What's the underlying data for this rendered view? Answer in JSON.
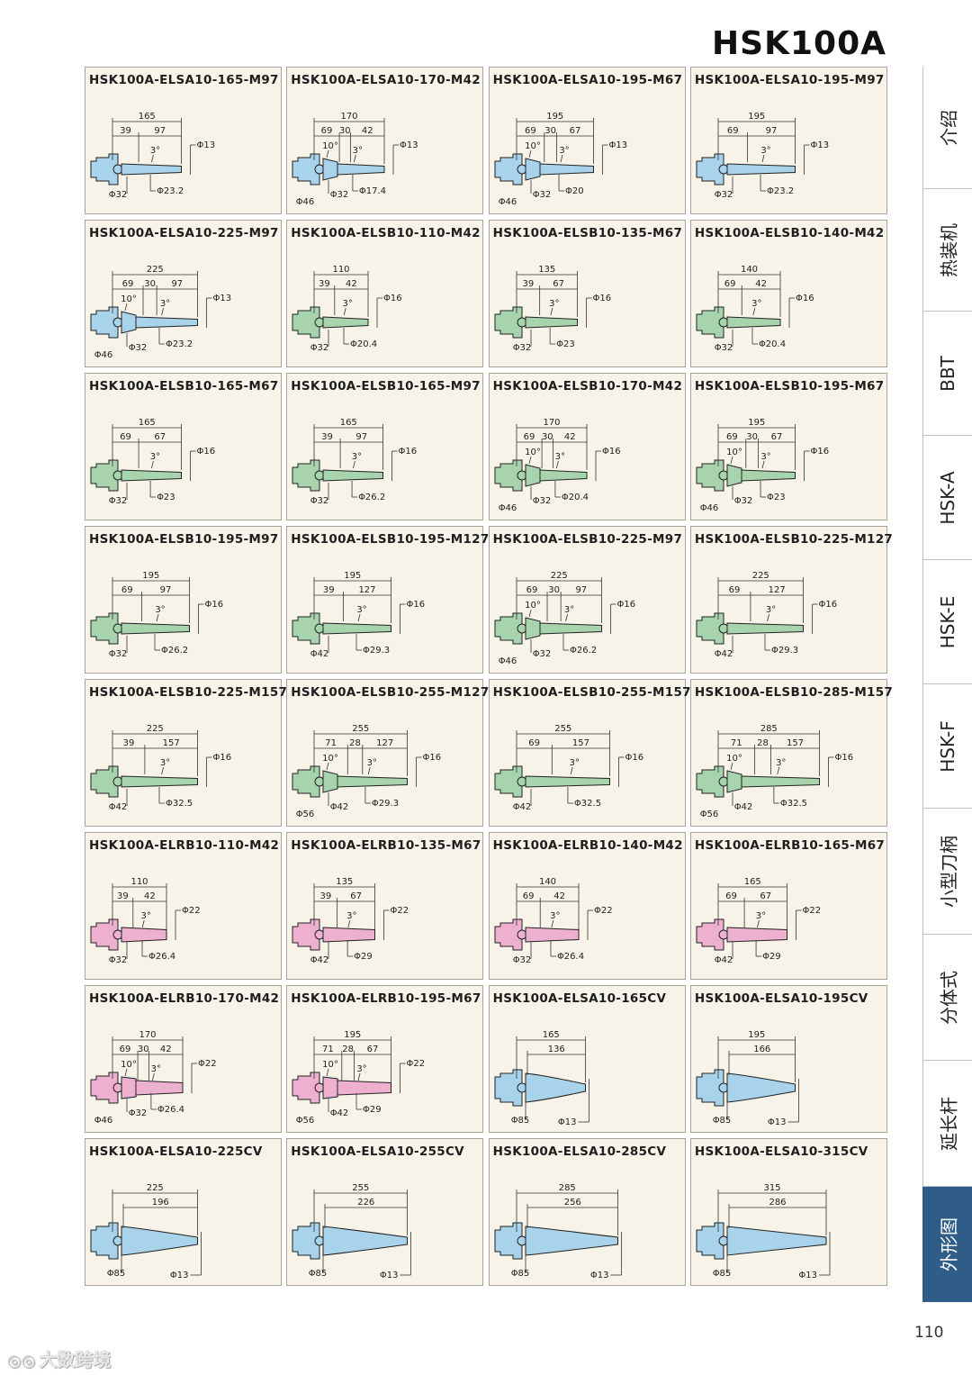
{
  "header": {
    "title": "HSK100A"
  },
  "page_number": "110",
  "watermark": {
    "icon": "camera-logo-icon",
    "text": "大数跨境"
  },
  "sidebar": {
    "items": [
      {
        "label": "介绍",
        "active": false
      },
      {
        "label": "热装机",
        "active": false
      },
      {
        "label": "BBT",
        "active": false
      },
      {
        "label": "HSK-A",
        "active": false
      },
      {
        "label": "HSK-E",
        "active": false
      },
      {
        "label": "HSK-F",
        "active": false
      },
      {
        "label": "小型刀柄",
        "active": false
      },
      {
        "label": "分体式",
        "active": false
      },
      {
        "label": "延长杆",
        "active": false
      },
      {
        "label": "外形图",
        "active": true
      }
    ]
  },
  "colors": {
    "ELSA": "#a9d3ea",
    "ELSB": "#a7d4ac",
    "ELRB": "#eeb0cf",
    "card_bg": "#f7f3e8",
    "sidebar_active": "#2f5d88"
  },
  "cards": [
    {
      "title": "HSK100A-ELSA10-165-M97",
      "kind": "ELSA",
      "total": "165",
      "dims": [
        "39",
        "97"
      ],
      "angles": [
        "3°"
      ],
      "d_tip": "Φ13",
      "d_body": "Φ23.2",
      "d_shank": [
        "Φ32"
      ]
    },
    {
      "title": "HSK100A-ELSA10-170-M42",
      "kind": "ELSA",
      "total": "170",
      "dims": [
        "69",
        "30",
        "42"
      ],
      "angles": [
        "10°",
        "3°"
      ],
      "d_tip": "Φ13",
      "d_body": "Φ17.4",
      "d_shank": [
        "Φ46",
        "Φ32"
      ]
    },
    {
      "title": "HSK100A-ELSA10-195-M67",
      "kind": "ELSA",
      "total": "195",
      "dims": [
        "69",
        "30",
        "67"
      ],
      "angles": [
        "10°",
        "3°"
      ],
      "d_tip": "Φ13",
      "d_body": "Φ20",
      "d_shank": [
        "Φ46",
        "Φ32"
      ]
    },
    {
      "title": "HSK100A-ELSA10-195-M97",
      "kind": "ELSA",
      "total": "195",
      "dims": [
        "69",
        "97"
      ],
      "angles": [
        "3°"
      ],
      "d_tip": "Φ13",
      "d_body": "Φ23.2",
      "d_shank": [
        "Φ32"
      ]
    },
    {
      "title": "HSK100A-ELSA10-225-M97",
      "kind": "ELSA",
      "total": "225",
      "dims": [
        "69",
        "30",
        "97"
      ],
      "angles": [
        "10°",
        "3°"
      ],
      "d_tip": "Φ13",
      "d_body": "Φ23.2",
      "d_shank": [
        "Φ46",
        "Φ32"
      ]
    },
    {
      "title": "HSK100A-ELSB10-110-M42",
      "kind": "ELSB",
      "total": "110",
      "dims": [
        "39",
        "42"
      ],
      "angles": [
        "3°"
      ],
      "d_tip": "Φ16",
      "d_body": "Φ20.4",
      "d_shank": [
        "Φ32"
      ]
    },
    {
      "title": "HSK100A-ELSB10-135-M67",
      "kind": "ELSB",
      "total": "135",
      "dims": [
        "39",
        "67"
      ],
      "angles": [
        "3°"
      ],
      "d_tip": "Φ16",
      "d_body": "Φ23",
      "d_shank": [
        "Φ32"
      ]
    },
    {
      "title": "HSK100A-ELSB10-140-M42",
      "kind": "ELSB",
      "total": "140",
      "dims": [
        "69",
        "42"
      ],
      "angles": [
        "3°"
      ],
      "d_tip": "Φ16",
      "d_body": "Φ20.4",
      "d_shank": [
        "Φ32"
      ]
    },
    {
      "title": "HSK100A-ELSB10-165-M67",
      "kind": "ELSB",
      "total": "165",
      "dims": [
        "69",
        "67"
      ],
      "angles": [
        "3°"
      ],
      "d_tip": "Φ16",
      "d_body": "Φ23",
      "d_shank": [
        "Φ32"
      ]
    },
    {
      "title": "HSK100A-ELSB10-165-M97",
      "kind": "ELSB",
      "total": "165",
      "dims": [
        "39",
        "97"
      ],
      "angles": [
        "3°"
      ],
      "d_tip": "Φ16",
      "d_body": "Φ26.2",
      "d_shank": [
        "Φ32"
      ]
    },
    {
      "title": "HSK100A-ELSB10-170-M42",
      "kind": "ELSB",
      "total": "170",
      "dims": [
        "69",
        "30",
        "42"
      ],
      "angles": [
        "10°",
        "3°"
      ],
      "d_tip": "Φ16",
      "d_body": "Φ20.4",
      "d_shank": [
        "Φ46",
        "Φ32"
      ]
    },
    {
      "title": "HSK100A-ELSB10-195-M67",
      "kind": "ELSB",
      "total": "195",
      "dims": [
        "69",
        "30",
        "67"
      ],
      "angles": [
        "10°",
        "3°"
      ],
      "d_tip": "Φ16",
      "d_body": "Φ23",
      "d_shank": [
        "Φ46",
        "Φ32"
      ]
    },
    {
      "title": "HSK100A-ELSB10-195-M97",
      "kind": "ELSB",
      "total": "195",
      "dims": [
        "69",
        "97"
      ],
      "angles": [
        "3°"
      ],
      "d_tip": "Φ16",
      "d_body": "Φ26.2",
      "d_shank": [
        "Φ32"
      ]
    },
    {
      "title": "HSK100A-ELSB10-195-M127",
      "kind": "ELSB",
      "total": "195",
      "dims": [
        "39",
        "127"
      ],
      "angles": [
        "3°"
      ],
      "d_tip": "Φ16",
      "d_body": "Φ29.3",
      "d_shank": [
        "Φ42"
      ]
    },
    {
      "title": "HSK100A-ELSB10-225-M97",
      "kind": "ELSB",
      "total": "225",
      "dims": [
        "69",
        "30",
        "97"
      ],
      "angles": [
        "10°",
        "3°"
      ],
      "d_tip": "Φ16",
      "d_body": "Φ26.2",
      "d_shank": [
        "Φ46",
        "Φ32"
      ]
    },
    {
      "title": "HSK100A-ELSB10-225-M127",
      "kind": "ELSB",
      "total": "225",
      "dims": [
        "69",
        "127"
      ],
      "angles": [
        "3°"
      ],
      "d_tip": "Φ16",
      "d_body": "Φ29.3",
      "d_shank": [
        "Φ42"
      ]
    },
    {
      "title": "HSK100A-ELSB10-225-M157",
      "kind": "ELSB",
      "total": "225",
      "dims": [
        "39",
        "157"
      ],
      "angles": [
        "3°"
      ],
      "d_tip": "Φ16",
      "d_body": "Φ32.5",
      "d_shank": [
        "Φ42"
      ]
    },
    {
      "title": "HSK100A-ELSB10-255-M127",
      "kind": "ELSB",
      "total": "255",
      "dims": [
        "71",
        "28",
        "127"
      ],
      "angles": [
        "10°",
        "3°"
      ],
      "d_tip": "Φ16",
      "d_body": "Φ29.3",
      "d_shank": [
        "Φ56",
        "Φ42"
      ]
    },
    {
      "title": "HSK100A-ELSB10-255-M157",
      "kind": "ELSB",
      "total": "255",
      "dims": [
        "69",
        "157"
      ],
      "angles": [
        "3°"
      ],
      "d_tip": "Φ16",
      "d_body": "Φ32.5",
      "d_shank": [
        "Φ42"
      ]
    },
    {
      "title": "HSK100A-ELSB10-285-M157",
      "kind": "ELSB",
      "total": "285",
      "dims": [
        "71",
        "28",
        "157"
      ],
      "angles": [
        "10°",
        "3°"
      ],
      "d_tip": "Φ16",
      "d_body": "Φ32.5",
      "d_shank": [
        "Φ56",
        "Φ42"
      ]
    },
    {
      "title": "HSK100A-ELRB10-110-M42",
      "kind": "ELRB",
      "total": "110",
      "dims": [
        "39",
        "42"
      ],
      "angles": [
        "3°"
      ],
      "d_tip": "Φ22",
      "d_body": "Φ26.4",
      "d_shank": [
        "Φ32"
      ]
    },
    {
      "title": "HSK100A-ELRB10-135-M67",
      "kind": "ELRB",
      "total": "135",
      "dims": [
        "39",
        "67"
      ],
      "angles": [
        "3°"
      ],
      "d_tip": "Φ22",
      "d_body": "Φ29",
      "d_shank": [
        "Φ42"
      ]
    },
    {
      "title": "HSK100A-ELRB10-140-M42",
      "kind": "ELRB",
      "total": "140",
      "dims": [
        "69",
        "42"
      ],
      "angles": [
        "3°"
      ],
      "d_tip": "Φ22",
      "d_body": "Φ26.4",
      "d_shank": [
        "Φ32"
      ]
    },
    {
      "title": "HSK100A-ELRB10-165-M67",
      "kind": "ELRB",
      "total": "165",
      "dims": [
        "69",
        "67"
      ],
      "angles": [
        "3°"
      ],
      "d_tip": "Φ22",
      "d_body": "Φ29",
      "d_shank": [
        "Φ42"
      ]
    },
    {
      "title": "HSK100A-ELRB10-170-M42",
      "kind": "ELRB",
      "total": "170",
      "dims": [
        "69",
        "30",
        "42"
      ],
      "angles": [
        "10°",
        "3°"
      ],
      "d_tip": "Φ22",
      "d_body": "Φ26.4",
      "d_shank": [
        "Φ46",
        "Φ32"
      ]
    },
    {
      "title": "HSK100A-ELRB10-195-M67",
      "kind": "ELRB",
      "total": "195",
      "dims": [
        "71",
        "28",
        "67"
      ],
      "angles": [
        "10°",
        "3°"
      ],
      "d_tip": "Φ22",
      "d_body": "Φ29",
      "d_shank": [
        "Φ56",
        "Φ42"
      ]
    },
    {
      "title": "HSK100A-ELSA10-165CV",
      "kind": "CV",
      "total": "165",
      "dims": [
        "136"
      ],
      "angles": [],
      "d_tip": "Φ13",
      "d_body": "",
      "d_shank": [
        "Φ85"
      ]
    },
    {
      "title": "HSK100A-ELSA10-195CV",
      "kind": "CV",
      "total": "195",
      "dims": [
        "166"
      ],
      "angles": [],
      "d_tip": "Φ13",
      "d_body": "",
      "d_shank": [
        "Φ85"
      ]
    },
    {
      "title": "HSK100A-ELSA10-225CV",
      "kind": "CV",
      "total": "225",
      "dims": [
        "196"
      ],
      "angles": [],
      "d_tip": "Φ13",
      "d_body": "",
      "d_shank": [
        "Φ85"
      ]
    },
    {
      "title": "HSK100A-ELSA10-255CV",
      "kind": "CV",
      "total": "255",
      "dims": [
        "226"
      ],
      "angles": [],
      "d_tip": "Φ13",
      "d_body": "",
      "d_shank": [
        "Φ85"
      ]
    },
    {
      "title": "HSK100A-ELSA10-285CV",
      "kind": "CV",
      "total": "285",
      "dims": [
        "256"
      ],
      "angles": [],
      "d_tip": "Φ13",
      "d_body": "",
      "d_shank": [
        "Φ85"
      ]
    },
    {
      "title": "HSK100A-ELSA10-315CV",
      "kind": "CV",
      "total": "315",
      "dims": [
        "286"
      ],
      "angles": [],
      "d_tip": "Φ13",
      "d_body": "",
      "d_shank": [
        "Φ85"
      ]
    }
  ]
}
